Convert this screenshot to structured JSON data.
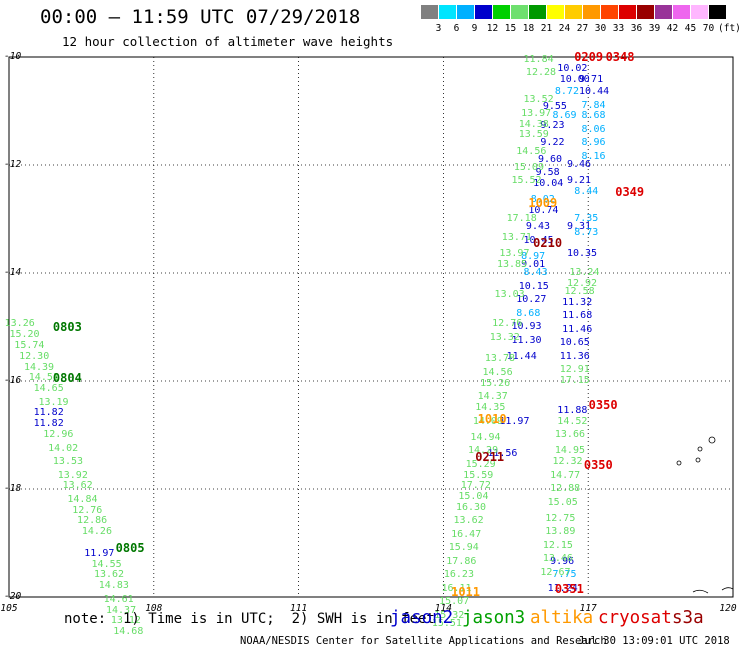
{
  "header": {
    "title": "00:00 – 11:59 UTC 07/29/2018",
    "subtitle": "12 hour collection of altimeter wave heights"
  },
  "legend": {
    "labels": [
      "3",
      "6",
      "9",
      "12",
      "15",
      "18",
      "21",
      "24",
      "27",
      "30",
      "33",
      "36",
      "39",
      "42",
      "45",
      "70",
      "(ft)"
    ],
    "colors": [
      "#808080",
      "#00e5ff",
      "#00b0ff",
      "#0000cc",
      "#00d000",
      "#6ee06e",
      "#009900",
      "#ffff00",
      "#ffcc00",
      "#ff9900",
      "#ff4400",
      "#dd0000",
      "#990000",
      "#993399",
      "#ee66ee",
      "#ffb6ff",
      "#000000"
    ]
  },
  "axes": {
    "x_ticks": [
      "105",
      "108",
      "111",
      "114",
      "117",
      "120"
    ],
    "y_ticks": [
      "-10",
      "-12",
      "-14",
      "-16",
      "-18",
      "-20"
    ],
    "x_range": [
      105,
      120
    ],
    "y_range": [
      -20,
      -10
    ],
    "grid": "dotted"
  },
  "satellites": [
    {
      "name": "jason2",
      "color": "#0000cc"
    },
    {
      "name": "jason3",
      "color": "#00a000"
    },
    {
      "name": "altika",
      "color": "#ff9900"
    },
    {
      "name": "cryosat",
      "color": "#dd0000"
    },
    {
      "name": "s3a",
      "color": "#990000"
    }
  ],
  "note": "note:  1) Time is in UTC;  2) SWH is in feet",
  "footer": {
    "credit": "NOAA/NESDIS Center for Satellite Applications and Research",
    "timestamp": "Jul 30 13:09:01 UTC 2018"
  },
  "chart_data": {
    "type": "scatter",
    "x_unit": "longitude",
    "y_unit": "latitude",
    "pass_labels": [
      {
        "text": "0803",
        "x": 106.2,
        "y": -15.0,
        "color": "#007700"
      },
      {
        "text": "0804",
        "x": 106.2,
        "y": -15.95,
        "color": "#007700"
      },
      {
        "text": "0805",
        "x": 107.5,
        "y": -19.1,
        "color": "#007700"
      },
      {
        "text": "0209",
        "x": 117.0,
        "y": -10.0,
        "color": "#dd0000"
      },
      {
        "text": "0348",
        "x": 117.65,
        "y": -10.0,
        "color": "#dd0000"
      },
      {
        "text": "0349",
        "x": 117.85,
        "y": -12.5,
        "color": "#dd0000"
      },
      {
        "text": "1009",
        "x": 116.05,
        "y": -12.7,
        "color": "#ff9900"
      },
      {
        "text": "0210",
        "x": 116.15,
        "y": -13.45,
        "color": "#990000"
      },
      {
        "text": "0350",
        "x": 117.3,
        "y": -16.45,
        "color": "#dd0000"
      },
      {
        "text": "1010",
        "x": 115.0,
        "y": -16.7,
        "color": "#ff9900"
      },
      {
        "text": "0211",
        "x": 114.95,
        "y": -17.4,
        "color": "#990000"
      },
      {
        "text": "0350",
        "x": 117.2,
        "y": -17.55,
        "color": "#dd0000"
      },
      {
        "text": "1011",
        "x": 114.45,
        "y": -19.9,
        "color": "#ff9900"
      },
      {
        "text": "0351",
        "x": 116.6,
        "y": -19.85,
        "color": "#dd0000"
      }
    ],
    "series": [
      {
        "name": "jason2",
        "color": "#0000cc",
        "points": [
          [
            116.65,
            -10.22,
            "10.02"
          ],
          [
            116.7,
            -10.42,
            "10.00"
          ],
          [
            116.35,
            -10.92,
            "9.55"
          ],
          [
            116.3,
            -11.28,
            "9.23"
          ],
          [
            116.3,
            -11.6,
            "9.22"
          ],
          [
            116.25,
            -11.9,
            "9.60"
          ],
          [
            116.2,
            -12.15,
            "9.58"
          ],
          [
            116.15,
            -12.35,
            "10.04"
          ],
          [
            116.05,
            -12.85,
            "10.74"
          ],
          [
            116.0,
            -13.15,
            "9.43"
          ],
          [
            115.95,
            -13.4,
            "10.45"
          ],
          [
            115.9,
            -13.85,
            "9.01"
          ],
          [
            115.85,
            -14.25,
            "10.15"
          ],
          [
            115.8,
            -14.5,
            "10.27"
          ],
          [
            115.7,
            -15.0,
            "10.93"
          ],
          [
            115.7,
            -15.25,
            "11.30"
          ],
          [
            115.6,
            -15.55,
            "11.44"
          ],
          [
            115.45,
            -16.75,
            "11.97"
          ],
          [
            115.2,
            -17.35,
            "11.56"
          ],
          [
            116.85,
            -12.0,
            "9.46"
          ],
          [
            116.85,
            -12.3,
            "9.21"
          ],
          [
            116.85,
            -13.15,
            "9.31"
          ],
          [
            116.85,
            -13.65,
            "10.35"
          ],
          [
            116.75,
            -14.55,
            "11.32"
          ],
          [
            116.75,
            -14.8,
            "11.68"
          ],
          [
            116.75,
            -15.05,
            "11.46"
          ],
          [
            116.7,
            -15.3,
            "10.65"
          ],
          [
            116.7,
            -15.55,
            "11.36"
          ],
          [
            116.65,
            -16.55,
            "11.88"
          ],
          [
            116.5,
            -19.35,
            "9.96"
          ],
          [
            116.45,
            -19.85,
            "11.24"
          ],
          [
            105.8,
            -16.6,
            "11.82"
          ],
          [
            105.8,
            -16.8,
            "11.82"
          ],
          [
            106.85,
            -19.2,
            "11.97"
          ],
          [
            117.1,
            -10.42,
            "9.71"
          ],
          [
            117.1,
            -10.65,
            "10.44"
          ]
        ]
      },
      {
        "name": "cyan",
        "color": "#00b0ff",
        "points": [
          [
            116.6,
            -10.65,
            "8.72"
          ],
          [
            116.55,
            -11.1,
            "8.69"
          ],
          [
            116.1,
            -12.65,
            "8.02"
          ],
          [
            115.9,
            -13.7,
            "8.97"
          ],
          [
            115.95,
            -14.0,
            "8.43"
          ],
          [
            115.8,
            -14.75,
            "8.68"
          ],
          [
            117.15,
            -10.9,
            "7.84"
          ],
          [
            117.15,
            -11.1,
            "8.68"
          ],
          [
            117.15,
            -11.35,
            "8.06"
          ],
          [
            117.15,
            -11.6,
            "8.96"
          ],
          [
            117.15,
            -11.85,
            "8.16"
          ],
          [
            117.0,
            -12.5,
            "8.44"
          ],
          [
            117.0,
            -13.0,
            "7.35"
          ],
          [
            117.0,
            -13.25,
            "8.73"
          ],
          [
            116.55,
            -19.6,
            "7.75"
          ]
        ]
      },
      {
        "name": "jason3",
        "color": "#66dd66",
        "points": [
          [
            105.2,
            -14.95,
            "13.26"
          ],
          [
            105.3,
            -15.15,
            "15.20"
          ],
          [
            105.4,
            -15.35,
            "15.74"
          ],
          [
            105.5,
            -15.55,
            "12.30"
          ],
          [
            105.6,
            -15.75,
            "14.39"
          ],
          [
            105.7,
            -15.95,
            "14.51"
          ],
          [
            105.8,
            -16.15,
            "14.65"
          ],
          [
            105.9,
            -16.4,
            "13.19"
          ],
          [
            106.0,
            -17.0,
            "12.96"
          ],
          [
            106.1,
            -17.25,
            "14.02"
          ],
          [
            106.2,
            -17.5,
            "13.53"
          ],
          [
            106.3,
            -17.75,
            "13.92"
          ],
          [
            106.4,
            -17.95,
            "13.62"
          ],
          [
            106.5,
            -18.2,
            "14.84"
          ],
          [
            106.6,
            -18.4,
            "12.76"
          ],
          [
            106.7,
            -18.6,
            "12.86"
          ],
          [
            106.8,
            -18.8,
            "14.26"
          ],
          [
            107.0,
            -19.4,
            "14.55"
          ],
          [
            107.05,
            -19.6,
            "13.62"
          ],
          [
            107.15,
            -19.8,
            "14.83"
          ],
          [
            107.25,
            -20.05,
            "14.61"
          ],
          [
            107.3,
            -20.25,
            "14.37"
          ],
          [
            107.4,
            -20.45,
            "13.12"
          ],
          [
            107.45,
            -20.65,
            "14.68"
          ],
          [
            115.95,
            -10.05,
            "11.84"
          ],
          [
            116.0,
            -10.3,
            "12.28"
          ],
          [
            115.95,
            -10.8,
            "13.52"
          ],
          [
            115.9,
            -11.05,
            "13.97"
          ],
          [
            115.85,
            -11.25,
            "14.38"
          ],
          [
            115.85,
            -11.45,
            "13.59"
          ],
          [
            115.8,
            -11.75,
            "14.56"
          ],
          [
            115.75,
            -12.05,
            "15.09"
          ],
          [
            115.7,
            -12.3,
            "15.52"
          ],
          [
            115.6,
            -13.0,
            "17.18"
          ],
          [
            115.5,
            -13.35,
            "13.71"
          ],
          [
            115.45,
            -13.65,
            "13.97"
          ],
          [
            115.4,
            -13.85,
            "13.85"
          ],
          [
            115.35,
            -14.4,
            "13.03"
          ],
          [
            115.3,
            -14.95,
            "12.76"
          ],
          [
            115.25,
            -15.2,
            "13.32"
          ],
          [
            115.15,
            -15.6,
            "13.78"
          ],
          [
            115.1,
            -15.85,
            "14.56"
          ],
          [
            115.05,
            -16.05,
            "15.26"
          ],
          [
            115.0,
            -16.3,
            "14.37"
          ],
          [
            114.95,
            -16.5,
            "14.35"
          ],
          [
            114.9,
            -16.75,
            "14.09"
          ],
          [
            114.85,
            -17.05,
            "14.94"
          ],
          [
            114.8,
            -17.3,
            "14.29"
          ],
          [
            114.75,
            -17.55,
            "15.29"
          ],
          [
            114.7,
            -17.75,
            "15.59"
          ],
          [
            114.65,
            -17.95,
            "17.72"
          ],
          [
            114.6,
            -18.15,
            "15.04"
          ],
          [
            114.55,
            -18.35,
            "16.30"
          ],
          [
            114.5,
            -18.6,
            "13.62"
          ],
          [
            114.45,
            -18.85,
            "16.47"
          ],
          [
            114.4,
            -19.1,
            "15.94"
          ],
          [
            114.35,
            -19.35,
            "17.86"
          ],
          [
            114.3,
            -19.6,
            "16.23"
          ],
          [
            114.25,
            -19.85,
            "16.11"
          ],
          [
            114.2,
            -20.1,
            "15.07"
          ],
          [
            114.1,
            -20.35,
            "15.32"
          ],
          [
            114.05,
            -20.5,
            "15.51"
          ],
          [
            116.9,
            -14.0,
            "13.24"
          ],
          [
            116.85,
            -14.2,
            "12.92"
          ],
          [
            116.8,
            -14.35,
            "12.58"
          ],
          [
            116.7,
            -15.8,
            "12.91"
          ],
          [
            116.7,
            -16.0,
            "17.15"
          ],
          [
            116.65,
            -16.75,
            "14.52"
          ],
          [
            116.6,
            -17.0,
            "13.66"
          ],
          [
            116.6,
            -17.3,
            "14.95"
          ],
          [
            116.55,
            -17.5,
            "12.32"
          ],
          [
            116.5,
            -17.75,
            "14.77"
          ],
          [
            116.5,
            -18.0,
            "12.88"
          ],
          [
            116.45,
            -18.25,
            "15.05"
          ],
          [
            116.4,
            -18.55,
            "12.75"
          ],
          [
            116.4,
            -18.8,
            "13.89"
          ],
          [
            116.35,
            -19.05,
            "12.15"
          ],
          [
            116.35,
            -19.3,
            "13.46"
          ],
          [
            116.3,
            -19.55,
            "12.67"
          ]
        ]
      }
    ]
  }
}
